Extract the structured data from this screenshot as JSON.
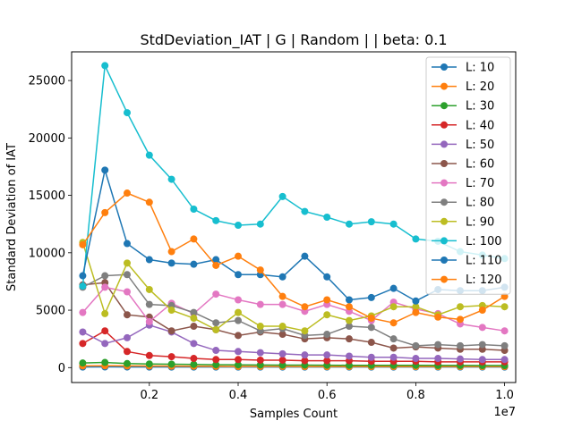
{
  "chart_data": {
    "type": "line",
    "title": "StdDeviation_IAT  | G | Random |  | beta: 0.1",
    "xlabel": "Samples Count",
    "ylabel": "Standard Deviation of IAT",
    "x_offset_label": "1e7",
    "xlim": [
      0.025,
      1.025
    ],
    "ylim": [
      -1300,
      27500
    ],
    "x_ticks": [
      0.2,
      0.4,
      0.6,
      0.8,
      1.0
    ],
    "x_tick_labels": [
      "0.2",
      "0.4",
      "0.6",
      "0.8",
      "1.0"
    ],
    "y_ticks": [
      0,
      5000,
      10000,
      15000,
      20000,
      25000
    ],
    "y_tick_labels": [
      "0",
      "5000",
      "10000",
      "15000",
      "20000",
      "25000"
    ],
    "grid": false,
    "legend_position": "top-right",
    "x": [
      0.05,
      0.1,
      0.15,
      0.2,
      0.25,
      0.3,
      0.35,
      0.4,
      0.45,
      0.5,
      0.55,
      0.6,
      0.65,
      0.7,
      0.75,
      0.8,
      0.85,
      0.9,
      0.95,
      1.0
    ],
    "series": [
      {
        "name": "L: 10",
        "color": "#1f77b4",
        "values": [
          50,
          60,
          55,
          50,
          50,
          50,
          50,
          50,
          50,
          50,
          50,
          50,
          50,
          50,
          50,
          50,
          50,
          50,
          50,
          50
        ]
      },
      {
        "name": "L: 20",
        "color": "#ff7f0e",
        "values": [
          150,
          160,
          150,
          140,
          130,
          120,
          110,
          100,
          100,
          100,
          90,
          90,
          90,
          90,
          90,
          90,
          90,
          90,
          90,
          90
        ]
      },
      {
        "name": "L: 30",
        "color": "#2ca02c",
        "values": [
          400,
          450,
          350,
          320,
          300,
          280,
          250,
          240,
          230,
          220,
          220,
          210,
          200,
          200,
          200,
          200,
          190,
          190,
          180,
          180
        ]
      },
      {
        "name": "L: 40",
        "color": "#d62728",
        "values": [
          2100,
          3200,
          1400,
          1050,
          950,
          800,
          700,
          700,
          650,
          650,
          600,
          600,
          600,
          550,
          550,
          550,
          500,
          500,
          500,
          500
        ]
      },
      {
        "name": "L: 50",
        "color": "#9467bd",
        "values": [
          3100,
          2100,
          2600,
          3700,
          3100,
          2100,
          1500,
          1400,
          1300,
          1200,
          1100,
          1100,
          1000,
          900,
          900,
          800,
          800,
          750,
          700,
          700
        ]
      },
      {
        "name": "L: 60",
        "color": "#8c564b",
        "values": [
          7200,
          7400,
          4600,
          4400,
          3200,
          3600,
          3300,
          2800,
          3100,
          2900,
          2500,
          2600,
          2500,
          2200,
          1700,
          1800,
          1700,
          1600,
          1600,
          1500
        ]
      },
      {
        "name": "L: 70",
        "color": "#e377c2",
        "values": [
          4800,
          7000,
          6600,
          4000,
          5600,
          4700,
          6400,
          5900,
          5500,
          5500,
          4900,
          5500,
          4900,
          4100,
          5700,
          5100,
          4700,
          3800,
          3500,
          3200
        ]
      },
      {
        "name": "L: 80",
        "color": "#7f7f7f",
        "values": [
          7000,
          8000,
          8100,
          5500,
          5400,
          4800,
          3900,
          4100,
          3200,
          3400,
          2800,
          2900,
          3600,
          3500,
          2500,
          1900,
          2000,
          1900,
          2000,
          1900
        ]
      },
      {
        "name": "L: 90",
        "color": "#bcbd22",
        "values": [
          10900,
          4700,
          9100,
          6800,
          5000,
          4300,
          3300,
          4800,
          3600,
          3600,
          3200,
          4600,
          4100,
          4500,
          5300,
          5300,
          4600,
          5300,
          5400,
          5300
        ]
      },
      {
        "name": "L: 100",
        "color": "#17becf",
        "values": [
          7100,
          26300,
          22200,
          18500,
          16400,
          13800,
          12800,
          12400,
          12500,
          14900,
          13600,
          13100,
          12500,
          12700,
          12500,
          11200,
          11000,
          10100,
          9800,
          9500
        ]
      },
      {
        "name": "L: 110",
        "color": "#1f77b4",
        "values": [
          8000,
          17200,
          10800,
          9400,
          9100,
          9000,
          9400,
          8100,
          8100,
          7900,
          9700,
          7900,
          5900,
          6100,
          6900,
          5800,
          6800,
          6700,
          6700,
          7000
        ]
      },
      {
        "name": "L: 120",
        "color": "#ff7f0e",
        "values": [
          10700,
          13500,
          15200,
          14400,
          10100,
          11200,
          8900,
          9700,
          8500,
          6200,
          5300,
          5900,
          5300,
          4300,
          3900,
          4800,
          4400,
          4200,
          5000,
          6200
        ]
      }
    ]
  }
}
